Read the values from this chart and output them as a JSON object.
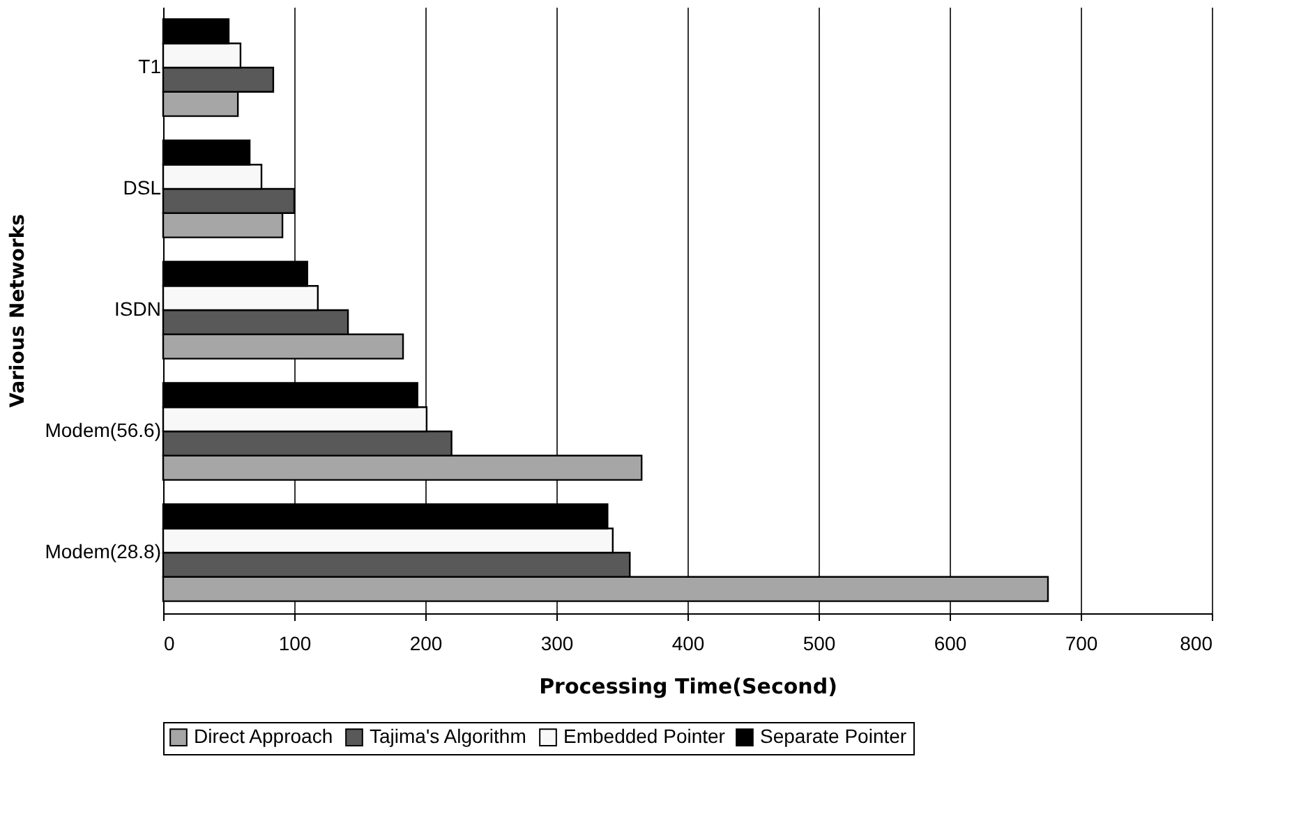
{
  "chart_data": {
    "type": "bar",
    "orientation": "horizontal",
    "xlabel": "Processing Time(Second)",
    "ylabel": "Various Networks",
    "categories": [
      "T1",
      "DSL",
      "ISDN",
      "Modem(56.6)",
      "Modem(28.8)"
    ],
    "series": [
      {
        "name": "Direct Approach",
        "color": "#a6a6a6",
        "values": [
          57,
          91,
          183,
          365,
          675
        ]
      },
      {
        "name": "Tajima's Algorithm",
        "color": "#595959",
        "values": [
          84,
          100,
          141,
          220,
          356
        ]
      },
      {
        "name": "Embedded Pointer",
        "color": "#f8f8f8",
        "values": [
          59,
          75,
          118,
          201,
          343
        ]
      },
      {
        "name": "Separate Pointer",
        "color": "#000000",
        "values": [
          50,
          66,
          110,
          194,
          339
        ]
      }
    ],
    "xlim": [
      0,
      800
    ],
    "xticks": [
      0,
      100,
      200,
      300,
      400,
      500,
      600,
      700,
      800
    ],
    "grid": "x",
    "legend": "bottom"
  }
}
